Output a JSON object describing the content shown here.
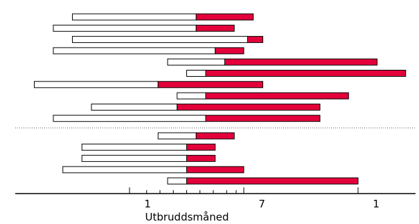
{
  "chart_data": {
    "type": "bar",
    "xlabel": "Utbruddsmåned",
    "tick_labels": [
      {
        "text": "1",
        "pos": 7
      },
      {
        "text": "7",
        "pos": 13
      },
      {
        "text": "1",
        "pos": 19
      }
    ],
    "xlim": [
      0,
      21
    ],
    "separator": "dotted",
    "colors": {
      "white_segment": "#ffffff",
      "red_segment": "#e3003b",
      "outline": "#000000"
    },
    "series": [
      {
        "values": [
          {
            "start": 3.0,
            "split": 9.5,
            "end": 12.5
          },
          {
            "start": 2.0,
            "split": 9.5,
            "end": 11.5
          },
          {
            "start": 3.0,
            "split": 12.2,
            "end": 13.0
          },
          {
            "start": 2.0,
            "split": 10.5,
            "end": 12.0
          },
          {
            "start": 8.0,
            "split": 11.0,
            "end": 19.0
          },
          {
            "start": 9.0,
            "split": 10.0,
            "end": 20.5
          },
          {
            "start": 1.0,
            "split": 7.5,
            "end": 13.0
          },
          {
            "start": 8.5,
            "split": 10.0,
            "end": 17.5
          },
          {
            "start": 4.0,
            "split": 8.5,
            "end": 16.0
          },
          {
            "start": 2.0,
            "split": 10.0,
            "end": 16.0
          }
        ]
      },
      {
        "values": [
          {
            "start": 7.5,
            "split": 9.5,
            "end": 11.5
          },
          {
            "start": 3.5,
            "split": 9.0,
            "end": 10.5
          },
          {
            "start": 3.5,
            "split": 9.0,
            "end": 10.5
          },
          {
            "start": 2.5,
            "split": 9.0,
            "end": 12.0
          },
          {
            "start": 8.0,
            "split": 9.0,
            "end": 18.0
          }
        ]
      }
    ]
  }
}
